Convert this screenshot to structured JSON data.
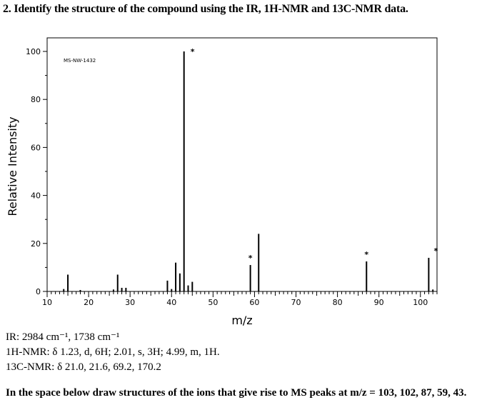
{
  "question": "2. Identify the structure of the compound using the IR, 1H-NMR and 13C-NMR data.",
  "chart_data": {
    "type": "bar",
    "spectrum_id": "MS-NW-1432",
    "xlabel": "m/z",
    "ylabel": "Relative Intensity",
    "xlim": [
      10,
      104
    ],
    "ylim": [
      0,
      100
    ],
    "x_ticks": [
      "10",
      "20",
      "30",
      "40",
      "50",
      "60",
      "70",
      "80",
      "90",
      "100"
    ],
    "y_ticks": [
      "0",
      "20",
      "40",
      "60",
      "80",
      "100"
    ],
    "grid": false,
    "peaks": [
      {
        "mz": 14,
        "intensity": 1,
        "starred": false
      },
      {
        "mz": 15,
        "intensity": 7,
        "starred": false
      },
      {
        "mz": 18,
        "intensity": 0.6,
        "starred": false
      },
      {
        "mz": 26,
        "intensity": 0.8,
        "starred": false
      },
      {
        "mz": 27,
        "intensity": 7,
        "starred": false
      },
      {
        "mz": 28,
        "intensity": 1.5,
        "starred": false
      },
      {
        "mz": 29,
        "intensity": 1.5,
        "starred": false
      },
      {
        "mz": 39,
        "intensity": 4.5,
        "starred": false
      },
      {
        "mz": 40,
        "intensity": 1,
        "starred": false
      },
      {
        "mz": 41,
        "intensity": 12,
        "starred": false
      },
      {
        "mz": 42,
        "intensity": 7.5,
        "starred": false
      },
      {
        "mz": 43,
        "intensity": 100,
        "starred": true
      },
      {
        "mz": 44,
        "intensity": 2.5,
        "starred": false
      },
      {
        "mz": 45,
        "intensity": 4,
        "starred": false
      },
      {
        "mz": 59,
        "intensity": 11,
        "starred": true
      },
      {
        "mz": 61,
        "intensity": 24,
        "starred": false
      },
      {
        "mz": 87,
        "intensity": 12.5,
        "starred": true
      },
      {
        "mz": 102,
        "intensity": 14,
        "starred": true
      },
      {
        "mz": 103,
        "intensity": 0.8,
        "starred": false
      }
    ],
    "star_mark": "*"
  },
  "data": {
    "ir": "IR: 2984 cm⁻¹, 1738 cm⁻¹",
    "h_nmr": "1H-NMR: δ 1.23, d, 6H; 2.01, s, 3H; 4.99, m, 1H.",
    "c_nmr": "13C-NMR: δ 21.0, 21.6, 69.2, 170.2"
  },
  "task": "In the space below draw structures of the ions that give rise to MS peaks at m/z = 103, 102, 87, 59, 43."
}
